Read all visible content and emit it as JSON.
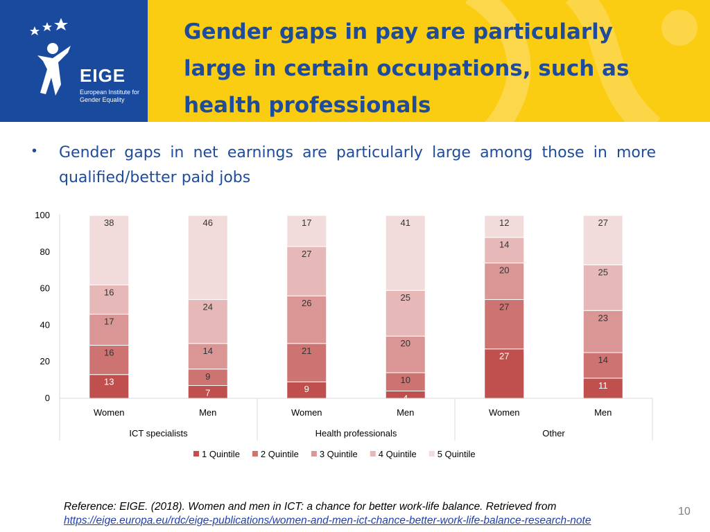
{
  "header": {
    "title": "Gender gaps in pay are particularly large in certain occupations, such as health professionals",
    "logo_word": "EIGE",
    "logo_subtitle": "European Institute for Gender Equality"
  },
  "bullet": "Gender gaps in net earnings are particularly large among those in more qualified/better paid jobs",
  "chart_data": {
    "type": "bar",
    "stacked": true,
    "groups": [
      {
        "name": "ICT specialists",
        "categories": [
          "Women",
          "Men"
        ]
      },
      {
        "name": "Health professionals",
        "categories": [
          "Women",
          "Men"
        ]
      },
      {
        "name": "Other",
        "categories": [
          "Women",
          "Men"
        ]
      }
    ],
    "categories": [
      "Women",
      "Men",
      "Women",
      "Men",
      "Women",
      "Men"
    ],
    "series": [
      {
        "name": "1 Quintile",
        "color": "#c0504d",
        "values": [
          13,
          7,
          9,
          4,
          27,
          11
        ]
      },
      {
        "name": "2 Quintile",
        "color": "#cd7371",
        "values": [
          16,
          9,
          21,
          10,
          27,
          14
        ]
      },
      {
        "name": "3 Quintile",
        "color": "#d99694",
        "values": [
          17,
          14,
          26,
          20,
          20,
          23
        ]
      },
      {
        "name": "4 Quintile",
        "color": "#e6b9b8",
        "values": [
          16,
          24,
          27,
          25,
          14,
          25
        ]
      },
      {
        "name": "5 Quintile",
        "color": "#f2dcdb",
        "values": [
          38,
          46,
          17,
          41,
          12,
          27
        ]
      }
    ],
    "ylim": [
      0,
      100
    ],
    "yticks": [
      0,
      20,
      40,
      60,
      80,
      100
    ],
    "legend": "bottom"
  },
  "footer": {
    "reference": "Reference: EIGE. (2018). Women and men in ICT: a chance for better work-life balance. Retrieved from",
    "url": "https://eige.europa.eu/rdc/eige-publications/women-and-men-ict-chance-better-work-life-balance-research-note",
    "page_number": "10"
  }
}
